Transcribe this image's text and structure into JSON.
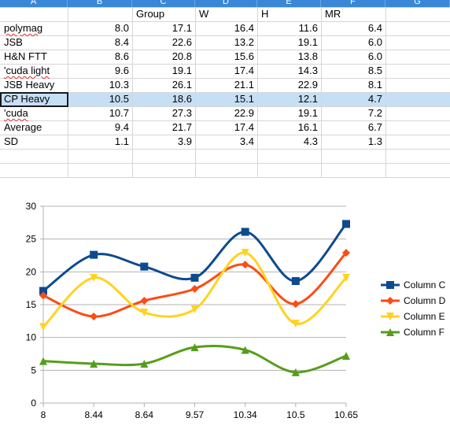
{
  "sheet": {
    "column_headers": [
      "A",
      "B",
      "C",
      "D",
      "E",
      "F",
      "G"
    ],
    "header_row": [
      "",
      "",
      "Group",
      "W",
      "H",
      "MR",
      ""
    ],
    "rows": [
      {
        "label": "polymag",
        "values": [
          "8.0",
          "17.1",
          "16.4",
          "11.6",
          "6.4"
        ],
        "spell_flag": true
      },
      {
        "label": "JSB",
        "values": [
          "8.4",
          "22.6",
          "13.2",
          "19.1",
          "6.0"
        ],
        "spell_flag": false
      },
      {
        "label": "H&N FTT",
        "values": [
          "8.6",
          "20.8",
          "15.6",
          "13.8",
          "6.0"
        ],
        "spell_flag": false
      },
      {
        "label": "'cuda light",
        "values": [
          "9.6",
          "19.1",
          "17.4",
          "14.3",
          "8.5"
        ],
        "spell_flag": true
      },
      {
        "label": "JSB Heavy",
        "values": [
          "10.3",
          "26.1",
          "21.1",
          "22.9",
          "8.1"
        ],
        "spell_flag": false
      },
      {
        "label": "CP Heavy",
        "values": [
          "10.5",
          "18.6",
          "15.1",
          "12.1",
          "4.7"
        ],
        "spell_flag": false
      },
      {
        "label": "'cuda",
        "values": [
          "10.7",
          "27.3",
          "22.9",
          "19.1",
          "7.2"
        ],
        "spell_flag": true
      },
      {
        "label": "Average",
        "values": [
          "9.4",
          "21.7",
          "17.4",
          "16.1",
          "6.7"
        ],
        "spell_flag": false
      },
      {
        "label": "SD",
        "values": [
          "1.1",
          "3.9",
          "3.4",
          "4.3",
          "1.3"
        ],
        "spell_flag": false
      }
    ],
    "selected_row_index": 5,
    "colors": {
      "header": "#3a87d8",
      "selection": "#c6dff5",
      "grid": "#d6d6d6"
    }
  },
  "chart_data": {
    "type": "line",
    "categories": [
      "8",
      "8.44",
      "8.64",
      "9.57",
      "10.34",
      "10.5",
      "10.65"
    ],
    "ylim": [
      0,
      30
    ],
    "yticks": [
      "0",
      "5",
      "10",
      "15",
      "20",
      "25",
      "30"
    ],
    "grid": true,
    "legend_position": "right",
    "smooth": true,
    "series": [
      {
        "name": "Column C",
        "values": [
          17.1,
          22.6,
          20.8,
          19.1,
          26.1,
          18.6,
          27.3
        ],
        "color": "#0d4a8e",
        "marker": "square"
      },
      {
        "name": "Column D",
        "values": [
          16.4,
          13.2,
          15.6,
          17.4,
          21.1,
          15.1,
          22.9
        ],
        "color": "#ff4a12",
        "marker": "diamond"
      },
      {
        "name": "Column E",
        "values": [
          11.6,
          19.1,
          13.8,
          14.3,
          22.9,
          12.1,
          19.1
        ],
        "color": "#ffd320",
        "marker": "triangle-down"
      },
      {
        "name": "Column F",
        "values": [
          6.4,
          6.0,
          6.0,
          8.5,
          8.1,
          4.7,
          7.2
        ],
        "color": "#579d1c",
        "marker": "triangle-up"
      }
    ]
  }
}
